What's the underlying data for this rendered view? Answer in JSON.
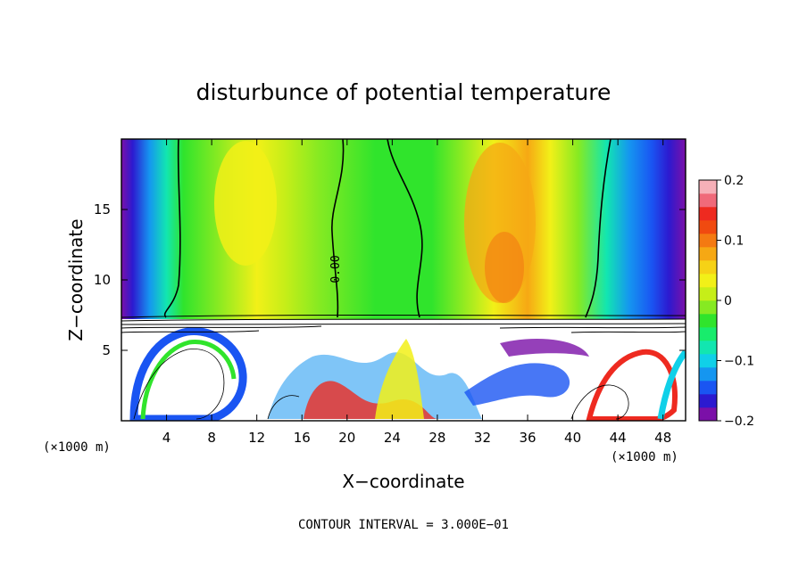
{
  "chart_data": {
    "type": "heatmap",
    "title": "disturbunce of potential temperature",
    "xlabel": "X−coordinate",
    "ylabel": "Z−coordinate",
    "x_unit_left": "(×1000 m)",
    "x_unit_right": "(×1000 m)",
    "xlim": [
      0,
      50
    ],
    "ylim": [
      0,
      20
    ],
    "x_ticks": [
      "4",
      "8",
      "12",
      "16",
      "20",
      "24",
      "28",
      "32",
      "36",
      "40",
      "44",
      "48"
    ],
    "y_ticks": [
      "5",
      "10",
      "15"
    ],
    "colorbar": {
      "range": [
        -0.2,
        0.2
      ],
      "tick_labels": [
        "0.2",
        "0.1",
        "0",
        "−0.1",
        "−0.2"
      ],
      "colors": [
        "#7b10a8",
        "#2c1ad0",
        "#1a55f2",
        "#1596f0",
        "#10d0e8",
        "#12e6b0",
        "#18ec6c",
        "#30e42c",
        "#86ea22",
        "#c6ee18",
        "#f2f018",
        "#f6d216",
        "#f6a814",
        "#f47a12",
        "#f04a10",
        "#ee2a20",
        "#f06a7a",
        "#f6b0b8"
      ]
    },
    "contour_label": "0.00",
    "contour_interval_text": "CONTOUR INTERVAL = 3.000E−01",
    "legend": "colorbar-right",
    "grid": false
  }
}
